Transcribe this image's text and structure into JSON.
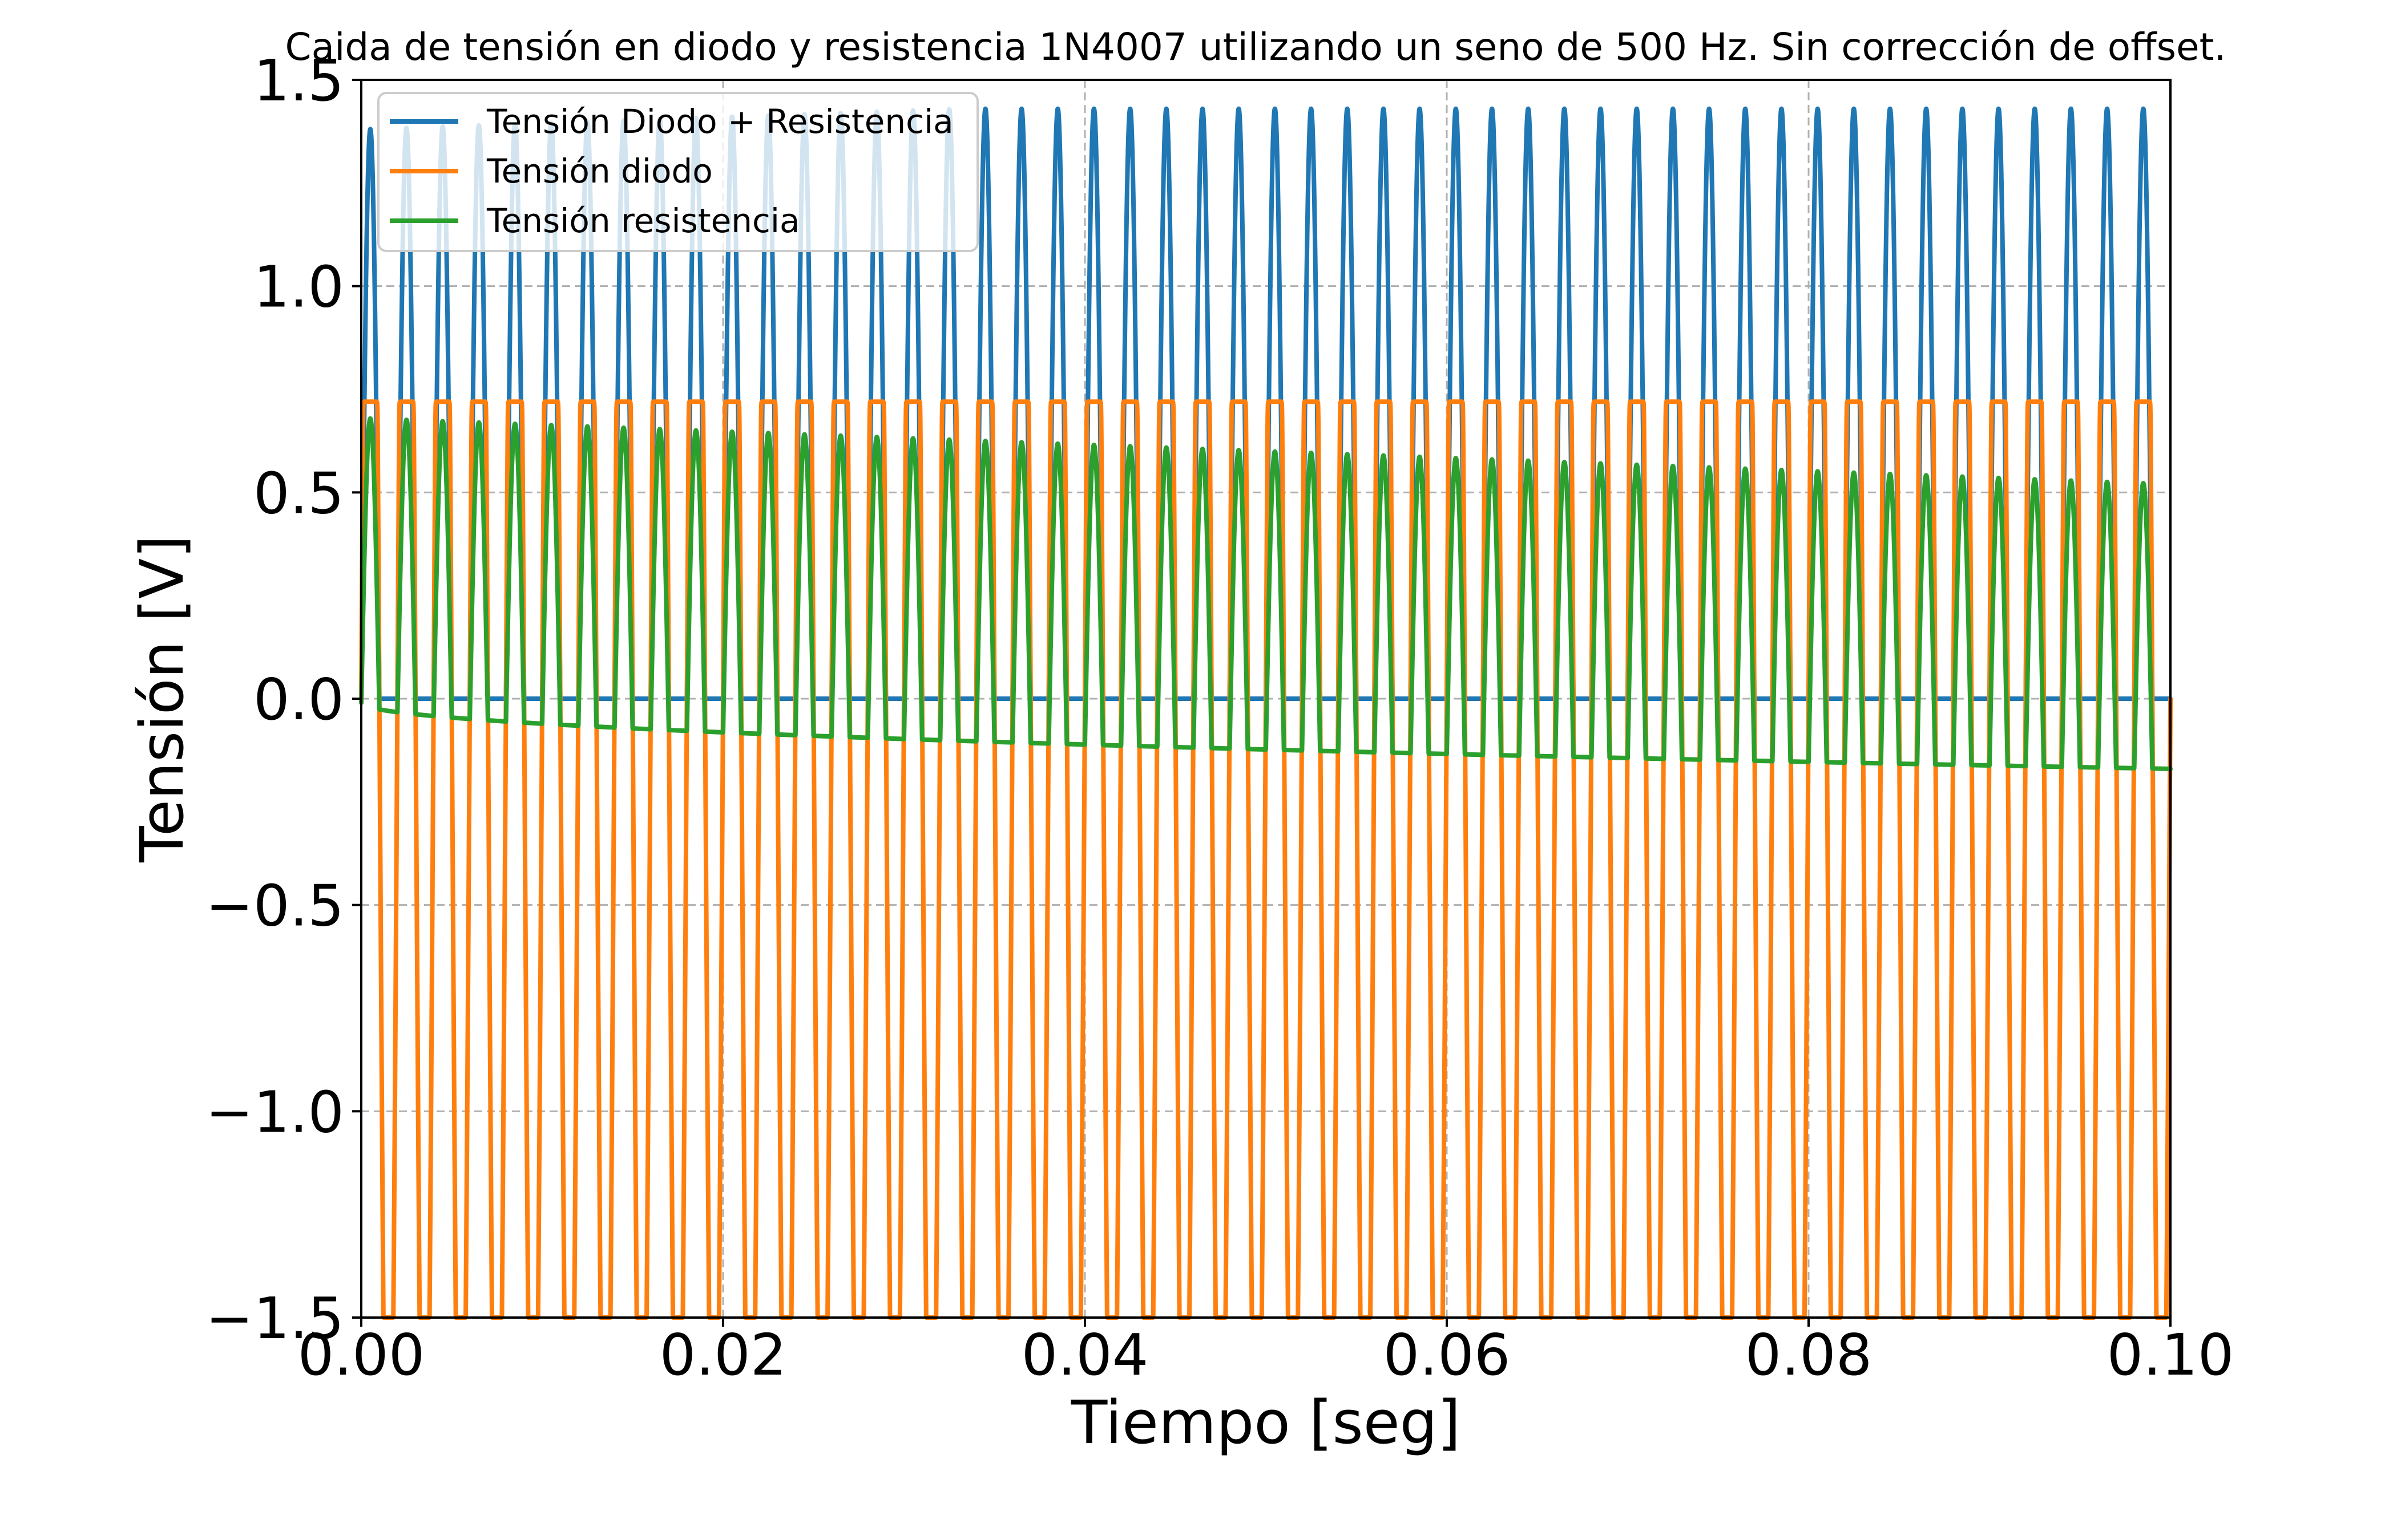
{
  "chart_data": {
    "type": "line",
    "title": "Caida de tensión en diodo y resistencia 1N4007 utilizando un seno de 500 Hz. Sin corrección de offset.",
    "xlabel": "Tiempo [seg]",
    "ylabel": "Tensión [V]",
    "xlim": [
      0.0,
      0.1
    ],
    "ylim": [
      -1.5,
      1.5
    ],
    "xticks": [
      0.0,
      0.02,
      0.04,
      0.06,
      0.08,
      0.1
    ],
    "xtick_labels": [
      "0.00",
      "0.02",
      "0.04",
      "0.06",
      "0.08",
      "0.10"
    ],
    "yticks": [
      -1.5,
      -1.0,
      -0.5,
      0.0,
      0.5,
      1.0,
      1.5
    ],
    "ytick_labels": [
      "−1.5",
      "−1.0",
      "−0.5",
      "0.0",
      "0.5",
      "1.0",
      "1.5"
    ],
    "grid": true,
    "legend_position": "top-left",
    "signal_frequency_hz": 500,
    "series": [
      {
        "name": "Tensión Diodo + Resistencia",
        "color": "#1f77b4",
        "waveform": "half-wave rectified sine, 500 Hz",
        "start_peak": 1.38,
        "end_peak": 1.43,
        "start_base": 0.0,
        "end_base": 0.0
      },
      {
        "name": "Tensión diodo",
        "color": "#ff7f0e",
        "waveform": "sine clipped above, 500 Hz",
        "start_peak": 0.72,
        "end_peak": 0.72,
        "trough": -1.5
      },
      {
        "name": "Tensión resistencia",
        "color": "#2ca02c",
        "waveform": "rectified pulses with drifting negative baseline, 500 Hz",
        "start_peak": 0.68,
        "end_peak": 0.52,
        "start_base": -0.01,
        "end_base": -0.17
      }
    ]
  }
}
